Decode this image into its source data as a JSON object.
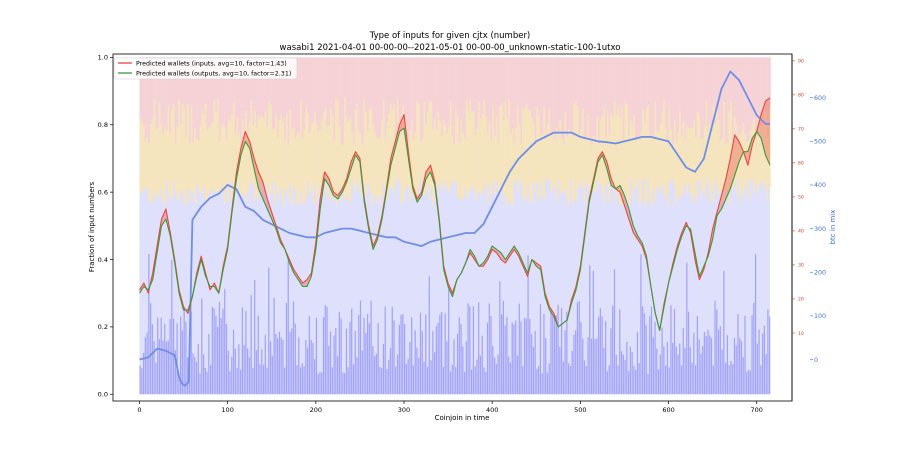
{
  "chart_data": {
    "type": "line",
    "title": "Type of inputs for given cjtx (number)",
    "subtitle": "wasabi1 2021-04-01 00-00-00--2021-05-01 00-00-00_unknown-static-100-1utxo",
    "xlabel": "Coinjoin in time",
    "ylabel": "Fraction of input numbers",
    "y2label": "btc in mix",
    "xlim": [
      -30,
      740
    ],
    "ylim": [
      -0.02,
      1.01
    ],
    "y2lim": [
      -95,
      700
    ],
    "y3lim": [
      -10,
      92
    ],
    "x_ticks": [
      0,
      100,
      200,
      300,
      400,
      500,
      600,
      700
    ],
    "y_ticks": [
      0.0,
      0.2,
      0.4,
      0.6,
      0.8,
      1.0
    ],
    "y2_ticks": [
      0,
      100,
      200,
      300,
      400,
      500,
      600
    ],
    "y3_ticks": [
      10,
      20,
      30,
      40,
      50,
      60,
      70,
      80,
      90
    ],
    "legend_position": "top-left",
    "colors": {
      "inputs_line": "#e8473f",
      "outputs_line": "#3a9a3a",
      "btc_line": "#6f8fe6",
      "blue_bars": "#8f8ff5",
      "pink_band": "#f9d0d0",
      "yellow_band": "#fbe6ad",
      "lavender_band": "#dfe0fb",
      "right_axis_red": "#d9342b",
      "right_axis_blue": "#3f6fd8"
    },
    "series": [
      {
        "name": "Predicted wallets (inputs, avg=10, factor=1.43)",
        "x": [
          0,
          5,
          10,
          15,
          20,
          25,
          30,
          35,
          40,
          45,
          50,
          55,
          60,
          65,
          70,
          75,
          80,
          85,
          90,
          95,
          100,
          105,
          110,
          115,
          120,
          125,
          130,
          135,
          140,
          145,
          150,
          155,
          160,
          165,
          170,
          175,
          180,
          185,
          190,
          195,
          200,
          205,
          210,
          215,
          220,
          225,
          230,
          235,
          240,
          245,
          250,
          255,
          260,
          265,
          270,
          275,
          280,
          285,
          290,
          295,
          300,
          305,
          310,
          315,
          320,
          325,
          330,
          335,
          340,
          345,
          350,
          355,
          360,
          365,
          370,
          375,
          380,
          385,
          390,
          395,
          400,
          405,
          410,
          415,
          420,
          425,
          430,
          435,
          440,
          445,
          450,
          455,
          460,
          465,
          470,
          475,
          480,
          485,
          490,
          495,
          500,
          505,
          510,
          515,
          520,
          525,
          530,
          535,
          540,
          545,
          550,
          555,
          560,
          565,
          570,
          575,
          580,
          585,
          590,
          595,
          600,
          605,
          610,
          615,
          620,
          625,
          630,
          635,
          640,
          645,
          650,
          655,
          660,
          665,
          670,
          675,
          680,
          685,
          690,
          695,
          700,
          705,
          710,
          715
        ],
        "values": [
          0.31,
          0.33,
          0.3,
          0.36,
          0.44,
          0.52,
          0.55,
          0.48,
          0.4,
          0.31,
          0.26,
          0.24,
          0.29,
          0.36,
          0.41,
          0.36,
          0.31,
          0.33,
          0.3,
          0.38,
          0.44,
          0.55,
          0.66,
          0.73,
          0.78,
          0.75,
          0.7,
          0.66,
          0.63,
          0.58,
          0.54,
          0.5,
          0.46,
          0.43,
          0.4,
          0.37,
          0.35,
          0.33,
          0.34,
          0.36,
          0.45,
          0.58,
          0.66,
          0.64,
          0.6,
          0.59,
          0.61,
          0.64,
          0.69,
          0.72,
          0.7,
          0.58,
          0.5,
          0.44,
          0.47,
          0.53,
          0.61,
          0.7,
          0.75,
          0.8,
          0.83,
          0.72,
          0.62,
          0.58,
          0.6,
          0.66,
          0.68,
          0.63,
          0.52,
          0.38,
          0.33,
          0.3,
          0.34,
          0.36,
          0.39,
          0.42,
          0.4,
          0.38,
          0.38,
          0.4,
          0.43,
          0.42,
          0.4,
          0.39,
          0.41,
          0.43,
          0.41,
          0.38,
          0.35,
          0.4,
          0.39,
          0.38,
          0.3,
          0.26,
          0.24,
          0.2,
          0.21,
          0.22,
          0.28,
          0.32,
          0.38,
          0.48,
          0.58,
          0.64,
          0.7,
          0.72,
          0.69,
          0.64,
          0.61,
          0.6,
          0.56,
          0.52,
          0.48,
          0.46,
          0.44,
          0.4,
          0.32,
          0.24,
          0.19,
          0.27,
          0.33,
          0.39,
          0.44,
          0.48,
          0.51,
          0.48,
          0.4,
          0.34,
          0.37,
          0.42,
          0.49,
          0.54,
          0.59,
          0.64,
          0.7,
          0.77,
          0.75,
          0.72,
          0.68,
          0.74,
          0.78,
          0.83,
          0.87,
          0.88
        ]
      },
      {
        "name": "Predicted wallets (outputs, avg=10, factor=2.31)",
        "x": [
          0,
          5,
          10,
          15,
          20,
          25,
          30,
          35,
          40,
          45,
          50,
          55,
          60,
          65,
          70,
          75,
          80,
          85,
          90,
          95,
          100,
          105,
          110,
          115,
          120,
          125,
          130,
          135,
          140,
          145,
          150,
          155,
          160,
          165,
          170,
          175,
          180,
          185,
          190,
          195,
          200,
          205,
          210,
          215,
          220,
          225,
          230,
          235,
          240,
          245,
          250,
          255,
          260,
          265,
          270,
          275,
          280,
          285,
          290,
          295,
          300,
          305,
          310,
          315,
          320,
          325,
          330,
          335,
          340,
          345,
          350,
          355,
          360,
          365,
          370,
          375,
          380,
          385,
          390,
          395,
          400,
          405,
          410,
          415,
          420,
          425,
          430,
          435,
          440,
          445,
          450,
          455,
          460,
          465,
          470,
          475,
          480,
          485,
          490,
          495,
          500,
          505,
          510,
          515,
          520,
          525,
          530,
          535,
          540,
          545,
          550,
          555,
          560,
          565,
          570,
          575,
          580,
          585,
          590,
          595,
          600,
          605,
          610,
          615,
          620,
          625,
          630,
          635,
          640,
          645,
          650,
          655,
          660,
          665,
          670,
          675,
          680,
          685,
          690,
          695,
          700,
          705,
          710,
          715
        ],
        "values": [
          0.3,
          0.32,
          0.31,
          0.34,
          0.42,
          0.5,
          0.52,
          0.47,
          0.39,
          0.3,
          0.25,
          0.25,
          0.29,
          0.35,
          0.4,
          0.35,
          0.32,
          0.32,
          0.3,
          0.37,
          0.43,
          0.54,
          0.64,
          0.71,
          0.75,
          0.73,
          0.67,
          0.61,
          0.58,
          0.55,
          0.52,
          0.49,
          0.45,
          0.43,
          0.39,
          0.36,
          0.34,
          0.32,
          0.32,
          0.35,
          0.43,
          0.55,
          0.64,
          0.62,
          0.59,
          0.58,
          0.6,
          0.63,
          0.67,
          0.71,
          0.69,
          0.57,
          0.49,
          0.43,
          0.46,
          0.52,
          0.6,
          0.68,
          0.73,
          0.78,
          0.79,
          0.7,
          0.61,
          0.57,
          0.59,
          0.64,
          0.66,
          0.62,
          0.51,
          0.37,
          0.32,
          0.29,
          0.34,
          0.36,
          0.39,
          0.43,
          0.41,
          0.38,
          0.39,
          0.41,
          0.44,
          0.43,
          0.42,
          0.4,
          0.42,
          0.44,
          0.42,
          0.39,
          0.36,
          0.4,
          0.38,
          0.37,
          0.29,
          0.25,
          0.23,
          0.2,
          0.21,
          0.22,
          0.27,
          0.31,
          0.37,
          0.47,
          0.57,
          0.63,
          0.69,
          0.71,
          0.67,
          0.62,
          0.61,
          0.62,
          0.59,
          0.55,
          0.5,
          0.47,
          0.45,
          0.41,
          0.32,
          0.24,
          0.19,
          0.26,
          0.33,
          0.38,
          0.43,
          0.47,
          0.5,
          0.49,
          0.42,
          0.35,
          0.38,
          0.41,
          0.46,
          0.53,
          0.55,
          0.58,
          0.61,
          0.65,
          0.69,
          0.72,
          0.72,
          0.76,
          0.78,
          0.76,
          0.71,
          0.68
        ]
      },
      {
        "name": "btc in mix",
        "axis": "right",
        "x": [
          0,
          10,
          20,
          30,
          40,
          45,
          48,
          52,
          56,
          60,
          70,
          80,
          90,
          100,
          110,
          120,
          130,
          140,
          150,
          160,
          170,
          180,
          190,
          200,
          210,
          220,
          230,
          240,
          250,
          260,
          270,
          280,
          290,
          300,
          310,
          320,
          330,
          340,
          350,
          360,
          370,
          380,
          390,
          400,
          410,
          420,
          430,
          440,
          450,
          460,
          470,
          480,
          490,
          500,
          510,
          520,
          530,
          540,
          550,
          560,
          570,
          580,
          590,
          600,
          610,
          620,
          630,
          640,
          650,
          660,
          670,
          680,
          690,
          700,
          710,
          715
        ],
        "values": [
          0,
          5,
          25,
          20,
          10,
          -40,
          -55,
          -60,
          -50,
          320,
          350,
          370,
          380,
          400,
          390,
          350,
          340,
          320,
          310,
          300,
          290,
          285,
          280,
          280,
          290,
          295,
          300,
          300,
          295,
          290,
          285,
          280,
          280,
          270,
          265,
          260,
          270,
          275,
          280,
          285,
          290,
          290,
          310,
          350,
          390,
          430,
          460,
          480,
          500,
          510,
          520,
          520,
          520,
          510,
          505,
          500,
          498,
          495,
          500,
          505,
          510,
          510,
          505,
          500,
          470,
          440,
          430,
          460,
          540,
          620,
          660,
          640,
          600,
          560,
          540,
          540
        ]
      }
    ]
  }
}
